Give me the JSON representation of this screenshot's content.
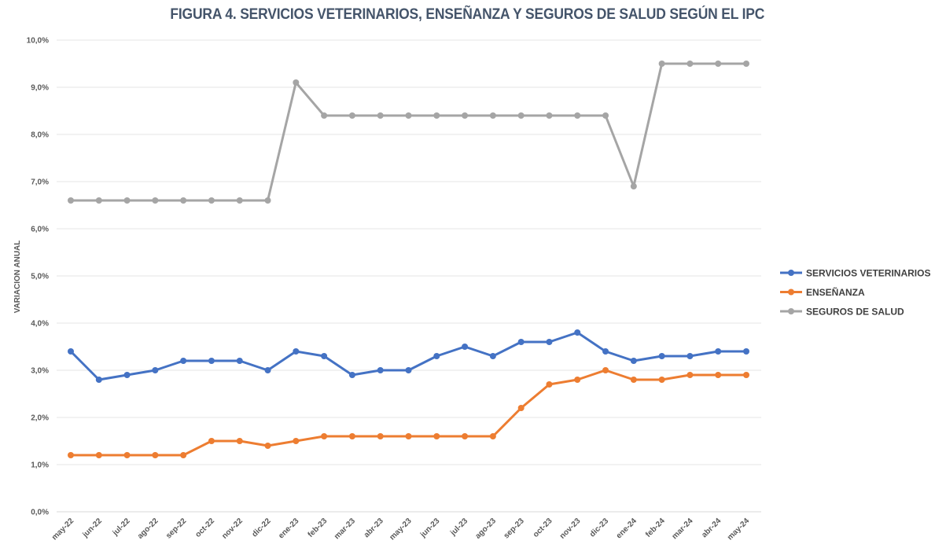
{
  "chart_data": {
    "type": "line",
    "title": "FIGURA 4. SERVICIOS VETERINARIOS, ENSEÑANZA Y SEGUROS DE SALUD SEGÚN EL IPC",
    "ylabel": "VARIACION ANUAL",
    "xlabel": "",
    "ylim": [
      0,
      10
    ],
    "y_ticks": [
      "0,0%",
      "1,0%",
      "2,0%",
      "3,0%",
      "4,0%",
      "5,0%",
      "6,0%",
      "7,0%",
      "8,0%",
      "9,0%",
      "10,0%"
    ],
    "grid": true,
    "legend_position": "right",
    "categories": [
      "may-22",
      "jun-22",
      "jul-22",
      "ago-22",
      "sep-22",
      "oct-22",
      "nov-22",
      "dic-22",
      "ene-23",
      "feb-23",
      "mar-23",
      "abr-23",
      "may-23",
      "jun-23",
      "jul-23",
      "ago-23",
      "sep-23",
      "oct-23",
      "nov-23",
      "dic-23",
      "ene-24",
      "feb-24",
      "mar-24",
      "abr-24",
      "may-24"
    ],
    "series": [
      {
        "name": "SERVICIOS VETERINARIOS",
        "color": "#4472c4",
        "values": [
          3.4,
          2.8,
          2.9,
          3.0,
          3.2,
          3.2,
          3.2,
          3.0,
          3.4,
          3.3,
          2.9,
          3.0,
          3.0,
          3.3,
          3.5,
          3.3,
          3.6,
          3.6,
          3.8,
          3.4,
          3.2,
          3.3,
          3.3,
          3.4,
          3.4
        ]
      },
      {
        "name": "ENSEÑANZA",
        "color": "#ed7d31",
        "values": [
          1.2,
          1.2,
          1.2,
          1.2,
          1.2,
          1.5,
          1.5,
          1.4,
          1.5,
          1.6,
          1.6,
          1.6,
          1.6,
          1.6,
          1.6,
          1.6,
          2.2,
          2.7,
          2.8,
          3.0,
          2.8,
          2.8,
          2.9,
          2.9,
          2.9
        ]
      },
      {
        "name": "SEGUROS DE SALUD",
        "color": "#a5a5a5",
        "values": [
          6.6,
          6.6,
          6.6,
          6.6,
          6.6,
          6.6,
          6.6,
          6.6,
          9.1,
          8.4,
          8.4,
          8.4,
          8.4,
          8.4,
          8.4,
          8.4,
          8.4,
          8.4,
          8.4,
          8.4,
          6.9,
          9.5,
          9.5,
          9.5,
          9.5
        ]
      }
    ]
  }
}
